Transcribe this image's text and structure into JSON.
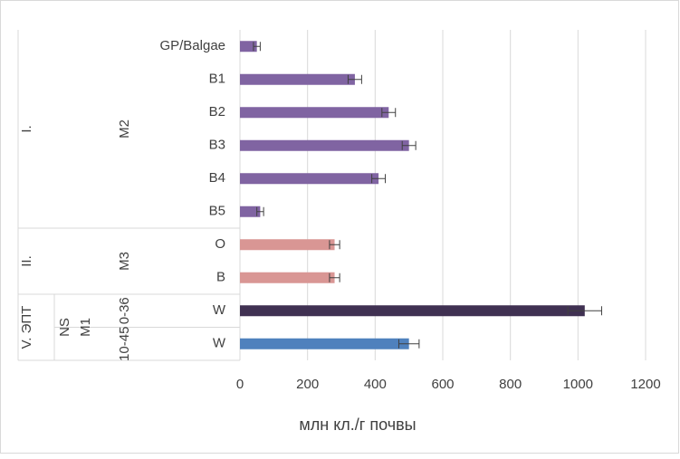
{
  "chart_data": {
    "type": "bar",
    "orientation": "horizontal",
    "x_label": "млн кл./г почвы",
    "categories": [
      "GP/Balgae",
      "B1",
      "B2",
      "B3",
      "B4",
      "B5",
      "O",
      "B",
      "W",
      "W"
    ],
    "category_levels": [
      [
        {
          "label": "I.",
          "span": 6
        },
        {
          "label": "II.",
          "span": 2
        },
        {
          "label": "V. ЭПТ",
          "span": 2
        }
      ],
      [
        {
          "label": null,
          "span": 8
        },
        {
          "label": "NS",
          "span": 2
        }
      ],
      [
        {
          "label": null,
          "span": 8
        },
        {
          "label": "M1",
          "span": 2
        }
      ],
      [
        {
          "label": "M2",
          "span": 6
        },
        {
          "label": "M3",
          "span": 2
        },
        {
          "label": "0-36",
          "span": 1
        },
        {
          "label": "10-45",
          "span": 1
        }
      ]
    ],
    "values": [
      50,
      340,
      440,
      500,
      410,
      60,
      280,
      280,
      1020,
      500
    ],
    "errors": [
      10,
      20,
      20,
      20,
      20,
      10,
      15,
      15,
      50,
      30
    ],
    "colors": [
      "#8064a2",
      "#8064a2",
      "#8064a2",
      "#8064a2",
      "#8064a2",
      "#8064a2",
      "#d99694",
      "#d99694",
      "#403152",
      "#4f81bd"
    ],
    "xlim": [
      0,
      1200
    ],
    "xticks": [
      0,
      200,
      400,
      600,
      800,
      1000,
      1200
    ],
    "grid": true
  }
}
